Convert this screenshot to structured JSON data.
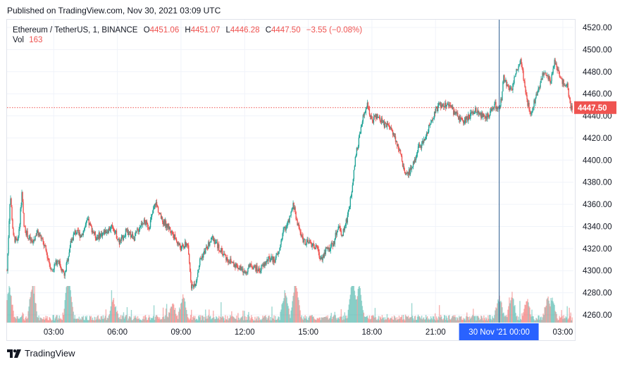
{
  "header": {
    "published": "Published on TradingView.com, Nov 30, 2021 03:09 UTC"
  },
  "legend": {
    "symbol": "Ethereum / TetherUS, 1, BINANCE",
    "open_label": "O",
    "open": "4451.06",
    "high_label": "H",
    "high": "4451.07",
    "low_label": "L",
    "low": "4446.28",
    "close_label": "C",
    "close": "4447.50",
    "change": "−3.55 (−0.08%)",
    "vol_label": "Vol",
    "vol": "163"
  },
  "footer": {
    "brand": "TradingView",
    "brand_icon": "tradingview-logo-icon"
  },
  "colors": {
    "up": "#26a69a",
    "down": "#ef5350",
    "grid": "#f0f3fa",
    "axis_text": "#131722",
    "price_line": "#ef5350",
    "crosshair": "#2a5a8f",
    "date_badge": "#2962ff"
  },
  "chart_data": {
    "type": "candlestick",
    "title": "Ethereum / TetherUS, 1, BINANCE",
    "y_axis": {
      "ticks": [
        4260,
        4280,
        4300,
        4320,
        4340,
        4360,
        4380,
        4400,
        4420,
        4440,
        4460,
        4480,
        4500,
        4520
      ],
      "tick_labels": [
        "4260.00",
        "4280.00",
        "4300.00",
        "4320.00",
        "4340.00",
        "4360.00",
        "4380.00",
        "4400.00",
        "4420.00",
        "4440.00",
        "4460.00",
        "4480.00",
        "4500.00",
        "4520.00"
      ],
      "range": [
        4253,
        4527
      ]
    },
    "x_axis": {
      "ticks": [
        "03:00",
        "06:00",
        "09:00",
        "12:00",
        "15:00",
        "18:00",
        "21:00",
        "03:00"
      ],
      "tick_hours": [
        3,
        6,
        9,
        12,
        15,
        18,
        21,
        27
      ],
      "range_hours": [
        0.8,
        27.5
      ]
    },
    "last_price": 4447.5,
    "last_price_label": "4447.50",
    "crosshair": {
      "hour": 24.0,
      "label": "30 Nov '21   00:00"
    },
    "grid": true,
    "price_path": [
      [
        0.8,
        4300
      ],
      [
        0.95,
        4370
      ],
      [
        1.1,
        4330
      ],
      [
        1.3,
        4325
      ],
      [
        1.4,
        4345
      ],
      [
        1.5,
        4370
      ],
      [
        1.6,
        4340
      ],
      [
        1.8,
        4330
      ],
      [
        2.0,
        4325
      ],
      [
        2.2,
        4335
      ],
      [
        2.4,
        4330
      ],
      [
        2.6,
        4320
      ],
      [
        2.9,
        4300
      ],
      [
        3.2,
        4310
      ],
      [
        3.5,
        4295
      ],
      [
        3.8,
        4325
      ],
      [
        4.0,
        4335
      ],
      [
        4.3,
        4332
      ],
      [
        4.6,
        4345
      ],
      [
        5.0,
        4330
      ],
      [
        5.4,
        4335
      ],
      [
        5.8,
        4340
      ],
      [
        6.1,
        4325
      ],
      [
        6.4,
        4335
      ],
      [
        6.8,
        4330
      ],
      [
        7.2,
        4345
      ],
      [
        7.5,
        4340
      ],
      [
        7.8,
        4362
      ],
      [
        8.1,
        4345
      ],
      [
        8.4,
        4340
      ],
      [
        8.7,
        4330
      ],
      [
        9.0,
        4320
      ],
      [
        9.3,
        4325
      ],
      [
        9.5,
        4285
      ],
      [
        9.7,
        4290
      ],
      [
        9.9,
        4310
      ],
      [
        10.2,
        4320
      ],
      [
        10.5,
        4330
      ],
      [
        10.8,
        4320
      ],
      [
        11.2,
        4310
      ],
      [
        11.6,
        4305
      ],
      [
        12.0,
        4298
      ],
      [
        12.3,
        4305
      ],
      [
        12.7,
        4300
      ],
      [
        13.1,
        4310
      ],
      [
        13.4,
        4310
      ],
      [
        13.6,
        4315
      ],
      [
        13.8,
        4335
      ],
      [
        14.1,
        4345
      ],
      [
        14.3,
        4360
      ],
      [
        14.5,
        4342
      ],
      [
        14.7,
        4330
      ],
      [
        14.9,
        4325
      ],
      [
        15.1,
        4325
      ],
      [
        15.4,
        4320
      ],
      [
        15.6,
        4310
      ],
      [
        15.8,
        4318
      ],
      [
        16.0,
        4320
      ],
      [
        16.2,
        4325
      ],
      [
        16.4,
        4340
      ],
      [
        16.6,
        4333
      ],
      [
        16.8,
        4345
      ],
      [
        17.0,
        4365
      ],
      [
        17.2,
        4400
      ],
      [
        17.4,
        4420
      ],
      [
        17.6,
        4440
      ],
      [
        17.8,
        4450
      ],
      [
        18.0,
        4435
      ],
      [
        18.2,
        4440
      ],
      [
        18.4,
        4436
      ],
      [
        18.6,
        4432
      ],
      [
        18.8,
        4432
      ],
      [
        19.0,
        4425
      ],
      [
        19.2,
        4415
      ],
      [
        19.4,
        4400
      ],
      [
        19.6,
        4385
      ],
      [
        19.8,
        4390
      ],
      [
        20.0,
        4400
      ],
      [
        20.2,
        4412
      ],
      [
        20.4,
        4415
      ],
      [
        20.6,
        4425
      ],
      [
        20.8,
        4435
      ],
      [
        21.0,
        4445
      ],
      [
        21.2,
        4450
      ],
      [
        21.4,
        4448
      ],
      [
        21.6,
        4452
      ],
      [
        21.8,
        4445
      ],
      [
        22.0,
        4440
      ],
      [
        22.3,
        4435
      ],
      [
        22.6,
        4440
      ],
      [
        22.9,
        4445
      ],
      [
        23.2,
        4440
      ],
      [
        23.5,
        4440
      ],
      [
        23.8,
        4450
      ],
      [
        24.0,
        4445
      ],
      [
        24.1,
        4455
      ],
      [
        24.2,
        4475
      ],
      [
        24.4,
        4465
      ],
      [
        24.6,
        4465
      ],
      [
        24.8,
        4480
      ],
      [
        25.0,
        4492
      ],
      [
        25.1,
        4480
      ],
      [
        25.3,
        4455
      ],
      [
        25.5,
        4440
      ],
      [
        25.6,
        4450
      ],
      [
        25.8,
        4460
      ],
      [
        26.0,
        4475
      ],
      [
        26.2,
        4480
      ],
      [
        26.4,
        4470
      ],
      [
        26.6,
        4490
      ],
      [
        26.8,
        4478
      ],
      [
        27.0,
        4470
      ],
      [
        27.2,
        4468
      ],
      [
        27.35,
        4450
      ],
      [
        27.45,
        4447.5
      ]
    ],
    "volume_peaks": [
      [
        0.9,
        45
      ],
      [
        2.0,
        50
      ],
      [
        3.7,
        70
      ],
      [
        5.8,
        28
      ],
      [
        8.6,
        20
      ],
      [
        9.1,
        35
      ],
      [
        13.9,
        38
      ],
      [
        14.4,
        55
      ],
      [
        17.1,
        62
      ],
      [
        17.4,
        50
      ],
      [
        24.0,
        30
      ],
      [
        24.6,
        35
      ],
      [
        25.3,
        28
      ],
      [
        26.3,
        30
      ],
      [
        26.5,
        28
      ]
    ]
  }
}
